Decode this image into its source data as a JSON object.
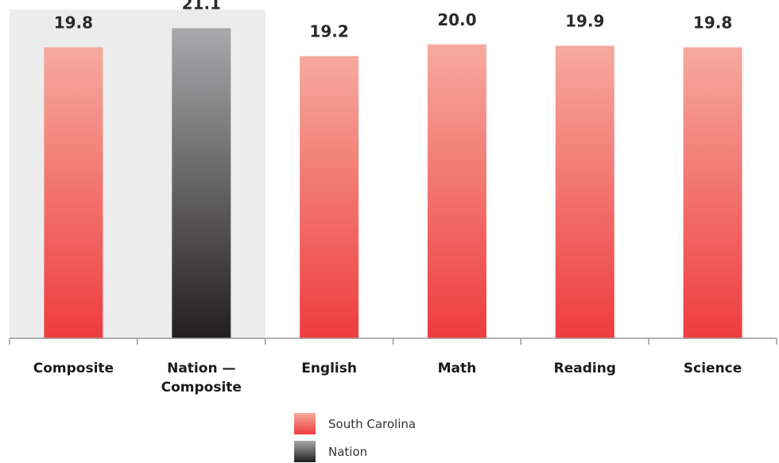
{
  "chart_data": {
    "type": "bar",
    "categories": [
      [
        "Composite"
      ],
      [
        "Nation —",
        "Composite"
      ],
      [
        "English"
      ],
      [
        "Math"
      ],
      [
        "Reading"
      ],
      [
        "Science"
      ]
    ],
    "values": [
      19.8,
      21.1,
      19.2,
      20.0,
      19.9,
      19.8
    ],
    "value_labels": [
      "19.8",
      "21.1",
      "19.2",
      "20.0",
      "19.9",
      "19.8"
    ],
    "bar_series": [
      "South Carolina",
      "Nation",
      "South Carolina",
      "South Carolina",
      "South Carolina",
      "South Carolina"
    ],
    "highlighted_group": [
      0,
      1
    ],
    "ylim": [
      0,
      21.5
    ],
    "legend": {
      "placement": "bottom-center",
      "items": [
        {
          "name": "South Carolina",
          "color_top": "#f6aa9e",
          "color_bottom": "#ee3c3f"
        },
        {
          "name": "Nation",
          "color_top": "#a8a9ab",
          "color_bottom": "#231f20"
        }
      ]
    },
    "colors": {
      "highlight_background": "#ececec",
      "axis": "#999999"
    },
    "grid": false
  }
}
